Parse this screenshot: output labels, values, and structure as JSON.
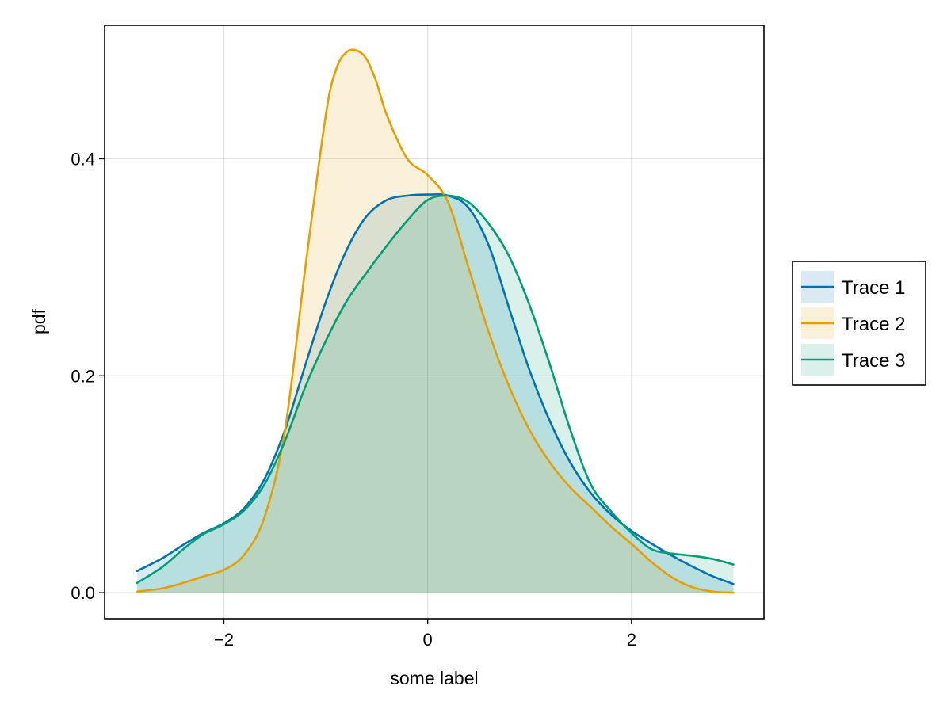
{
  "chart_data": {
    "type": "area",
    "title": "",
    "xlabel": "some label",
    "ylabel": "pdf",
    "xlim": [
      -3.17,
      3.3
    ],
    "ylim": [
      -0.024,
      0.523
    ],
    "xticks": [
      -2,
      0,
      2
    ],
    "xtick_labels": [
      "−2",
      "0",
      "2"
    ],
    "yticks": [
      0.0,
      0.2,
      0.4
    ],
    "ytick_labels": [
      "0.0",
      "0.2",
      "0.4"
    ],
    "grid": true,
    "legend_position": "right",
    "series": [
      {
        "name": "Trace 1",
        "color": "#0072b2",
        "x": [
          -2.85,
          -2.6,
          -2.4,
          -2.2,
          -2.0,
          -1.8,
          -1.6,
          -1.4,
          -1.2,
          -1.0,
          -0.8,
          -0.6,
          -0.4,
          -0.2,
          0.0,
          0.2,
          0.4,
          0.6,
          0.8,
          1.0,
          1.2,
          1.4,
          1.6,
          1.8,
          2.0,
          2.2,
          2.4,
          2.6,
          2.8,
          3.0
        ],
        "y": [
          0.02,
          0.032,
          0.044,
          0.055,
          0.064,
          0.078,
          0.105,
          0.15,
          0.21,
          0.268,
          0.315,
          0.347,
          0.362,
          0.366,
          0.367,
          0.366,
          0.355,
          0.32,
          0.262,
          0.205,
          0.158,
          0.12,
          0.092,
          0.072,
          0.057,
          0.045,
          0.034,
          0.024,
          0.015,
          0.008
        ]
      },
      {
        "name": "Trace 2",
        "color": "#e69f00",
        "x": [
          -2.85,
          -2.6,
          -2.4,
          -2.2,
          -2.0,
          -1.8,
          -1.6,
          -1.4,
          -1.2,
          -1.0,
          -0.9,
          -0.8,
          -0.7,
          -0.6,
          -0.5,
          -0.4,
          -0.2,
          0.0,
          0.2,
          0.4,
          0.6,
          0.8,
          1.0,
          1.2,
          1.4,
          1.6,
          1.8,
          2.0,
          2.2,
          2.4,
          2.6,
          2.8,
          3.0
        ],
        "y": [
          0.001,
          0.004,
          0.009,
          0.015,
          0.021,
          0.035,
          0.07,
          0.15,
          0.3,
          0.44,
          0.482,
          0.498,
          0.5,
          0.492,
          0.47,
          0.44,
          0.4,
          0.385,
          0.36,
          0.3,
          0.24,
          0.19,
          0.15,
          0.12,
          0.097,
          0.079,
          0.061,
          0.045,
          0.028,
          0.014,
          0.005,
          0.001,
          0.0
        ]
      },
      {
        "name": "Trace 3",
        "color": "#009e73",
        "x": [
          -2.85,
          -2.6,
          -2.4,
          -2.2,
          -2.0,
          -1.8,
          -1.6,
          -1.4,
          -1.2,
          -1.0,
          -0.8,
          -0.6,
          -0.4,
          -0.2,
          0.0,
          0.2,
          0.4,
          0.6,
          0.8,
          1.0,
          1.2,
          1.4,
          1.6,
          1.8,
          2.0,
          2.2,
          2.4,
          2.6,
          2.8,
          3.0
        ],
        "y": [
          0.009,
          0.024,
          0.04,
          0.054,
          0.063,
          0.076,
          0.1,
          0.14,
          0.19,
          0.232,
          0.268,
          0.295,
          0.32,
          0.343,
          0.362,
          0.366,
          0.36,
          0.34,
          0.31,
          0.265,
          0.21,
          0.15,
          0.1,
          0.075,
          0.055,
          0.04,
          0.036,
          0.034,
          0.031,
          0.026
        ]
      }
    ]
  }
}
